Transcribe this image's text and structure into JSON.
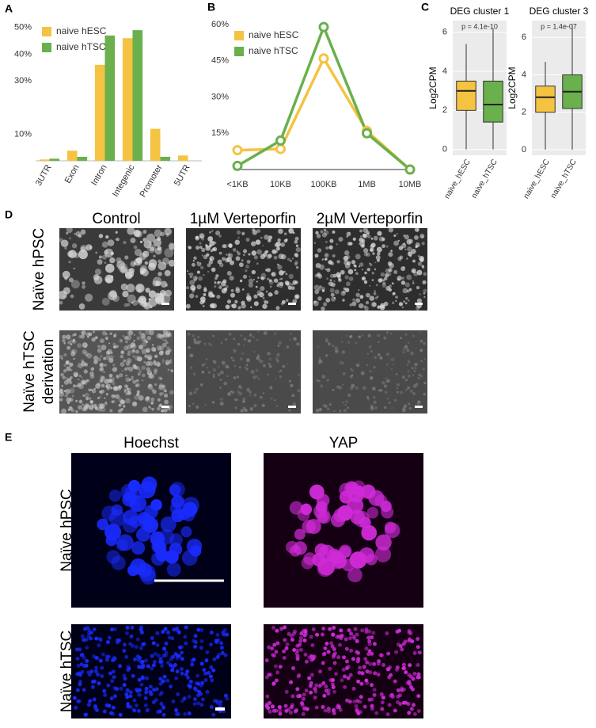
{
  "panel_labels": [
    "A",
    "B",
    "C",
    "D",
    "E"
  ],
  "chart_data": [
    {
      "type": "bar",
      "categories": [
        "3UTR",
        "Exon",
        "Intron",
        "Integenic",
        "Promoter",
        "5UTR"
      ],
      "series": [
        {
          "name": "naive hESC",
          "color": "#f5c342",
          "values": [
            0.5,
            3.8,
            36,
            46,
            12,
            2
          ]
        },
        {
          "name": "naive hTSC",
          "color": "#6ab04c",
          "values": [
            0.8,
            1.5,
            47,
            49,
            1.5,
            0
          ]
        }
      ],
      "ylim": [
        0,
        52
      ],
      "yticks": [
        {
          "value": 10,
          "label": "10%"
        },
        {
          "value": 30,
          "label": "30%"
        },
        {
          "value": 40,
          "label": "40%"
        },
        {
          "value": 50,
          "label": "50%"
        }
      ],
      "legend": "upper-left"
    },
    {
      "type": "line",
      "categories": [
        "<1KB",
        "10KB",
        "100KB",
        "1MB",
        "10MB"
      ],
      "series": [
        {
          "name": "naive hESC",
          "color": "#f5c342",
          "values": [
            8,
            8.5,
            46,
            16,
            0
          ]
        },
        {
          "name": "naive hTSC",
          "color": "#6ab04c",
          "values": [
            1.5,
            12,
            59,
            15,
            0
          ]
        }
      ],
      "ylim": [
        0,
        62
      ],
      "yticks": [
        {
          "value": 15,
          "label": "15%"
        },
        {
          "value": 30,
          "label": "30%"
        },
        {
          "value": 45,
          "label": "45%"
        },
        {
          "value": 60,
          "label": "60%"
        }
      ],
      "legend": "upper-left"
    },
    {
      "type": "box",
      "title": "DEG cluster 1",
      "annotation": "p = 4.1e-10",
      "y_label": "Log2CPM",
      "categories": [
        "naive_hESC",
        "naive_hTSC"
      ],
      "colors": [
        "#f5c342",
        "#6ab04c"
      ],
      "boxes": [
        {
          "low": 0,
          "q1": 2.0,
          "median": 3.0,
          "q3": 3.5,
          "high": 5.4
        },
        {
          "low": 0,
          "q1": 1.4,
          "median": 2.3,
          "q3": 3.5,
          "high": 6.2
        }
      ],
      "ylim": [
        -0.3,
        6.6
      ],
      "yticks": [
        0,
        2,
        4,
        6
      ],
      "grid": true
    },
    {
      "type": "box",
      "title": "DEG cluster 3",
      "annotation": "p = 1.4e-07",
      "y_label": "Log2CPM",
      "categories": [
        "naive_hESC",
        "naive_hTSC"
      ],
      "colors": [
        "#f5c342",
        "#6ab04c"
      ],
      "boxes": [
        {
          "low": 0,
          "q1": 2.0,
          "median": 2.8,
          "q3": 3.4,
          "high": 4.7
        },
        {
          "low": 0,
          "q1": 2.2,
          "median": 3.1,
          "q3": 4.0,
          "high": 6.7
        }
      ],
      "ylim": [
        -0.3,
        6.9
      ],
      "yticks": [
        0,
        2,
        4,
        6
      ],
      "grid": true
    }
  ],
  "panel_d": {
    "columns": [
      "Control",
      "1µM Verteporfin",
      "2µM Verteporfin"
    ],
    "rows": [
      [
        "Naïve hPSC"
      ],
      [
        "Naïve hTSC",
        "derivation"
      ]
    ]
  },
  "panel_e": {
    "columns": [
      "Hoechst",
      "YAP"
    ],
    "rows": [
      "Naïve hPSC",
      "Naïve hTSC"
    ]
  }
}
